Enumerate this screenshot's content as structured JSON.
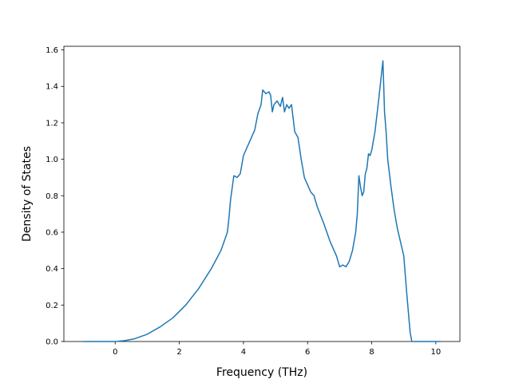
{
  "chart_data": {
    "type": "line",
    "title": "",
    "xlabel": "Frequency (THz)",
    "ylabel": "Density of States",
    "xlim": [
      -1.6,
      10.75
    ],
    "ylim": [
      0,
      1.62
    ],
    "xticks": [
      0,
      2,
      4,
      6,
      8,
      10
    ],
    "yticks": [
      0.0,
      0.2,
      0.4,
      0.6,
      0.8,
      1.0,
      1.2,
      1.4,
      1.6
    ],
    "xtick_labels": [
      "0",
      "2",
      "4",
      "6",
      "8",
      "10"
    ],
    "ytick_labels": [
      "0.0",
      "0.2",
      "0.4",
      "0.6",
      "0.8",
      "1.0",
      "1.2",
      "1.4",
      "1.6"
    ],
    "grid": false,
    "series": [
      {
        "color": "#1f77b4",
        "x": [
          -1.0,
          0.0,
          0.3,
          0.6,
          1.0,
          1.4,
          1.8,
          2.2,
          2.6,
          3.0,
          3.3,
          3.5,
          3.55,
          3.6,
          3.7,
          3.8,
          3.9,
          4.0,
          4.2,
          4.35,
          4.45,
          4.55,
          4.6,
          4.7,
          4.8,
          4.85,
          4.9,
          4.95,
          5.05,
          5.15,
          5.22,
          5.28,
          5.35,
          5.42,
          5.5,
          5.6,
          5.7,
          5.8,
          5.9,
          6.0,
          6.1,
          6.2,
          6.3,
          6.5,
          6.7,
          6.9,
          7.0,
          7.1,
          7.2,
          7.3,
          7.4,
          7.5,
          7.55,
          7.6,
          7.65,
          7.7,
          7.75,
          7.8,
          7.85,
          7.9,
          7.95,
          8.0,
          8.1,
          8.2,
          8.3,
          8.35,
          8.4,
          8.45,
          8.5,
          8.6,
          8.7,
          8.8,
          9.0,
          9.1,
          9.2,
          9.25,
          9.3,
          10.0,
          10.15
        ],
        "y": [
          0.0,
          0.0,
          0.005,
          0.015,
          0.04,
          0.08,
          0.13,
          0.2,
          0.29,
          0.4,
          0.5,
          0.6,
          0.68,
          0.78,
          0.91,
          0.9,
          0.92,
          1.02,
          1.1,
          1.16,
          1.25,
          1.3,
          1.38,
          1.36,
          1.37,
          1.35,
          1.26,
          1.3,
          1.32,
          1.29,
          1.34,
          1.26,
          1.3,
          1.28,
          1.3,
          1.15,
          1.12,
          1.0,
          0.9,
          0.86,
          0.82,
          0.8,
          0.74,
          0.65,
          0.55,
          0.47,
          0.41,
          0.42,
          0.41,
          0.44,
          0.5,
          0.6,
          0.7,
          0.91,
          0.85,
          0.8,
          0.82,
          0.92,
          0.95,
          1.03,
          1.02,
          1.05,
          1.15,
          1.3,
          1.46,
          1.54,
          1.26,
          1.15,
          1.0,
          0.85,
          0.72,
          0.62,
          0.47,
          0.25,
          0.05,
          0.0,
          0.0,
          0.0,
          0.0
        ]
      }
    ]
  }
}
